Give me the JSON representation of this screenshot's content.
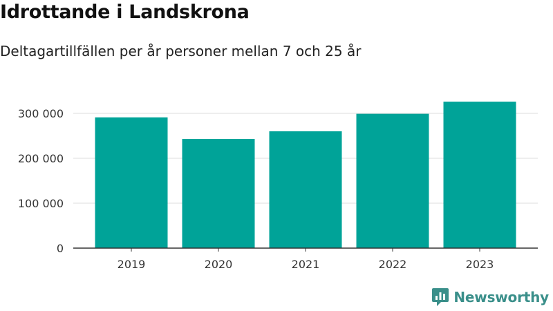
{
  "chart_data": {
    "type": "bar",
    "title": "Idrottande i Landskrona",
    "subtitle": "Deltagartillfällen per år personer mellan 7 och 25 år",
    "categories": [
      "2019",
      "2020",
      "2021",
      "2022",
      "2023"
    ],
    "values": [
      291000,
      243000,
      260000,
      299000,
      326000
    ],
    "ylim": [
      0,
      345000
    ],
    "yticks": [
      0,
      100000,
      200000,
      300000
    ],
    "ytick_labels": [
      "0",
      "100 000",
      "200 000",
      "300 000"
    ],
    "bar_color": "#00a398",
    "grid": true
  },
  "brand": {
    "name": "Newsworthy",
    "color": "#3a8f8a",
    "icon": "newsworthy-logo-icon"
  }
}
